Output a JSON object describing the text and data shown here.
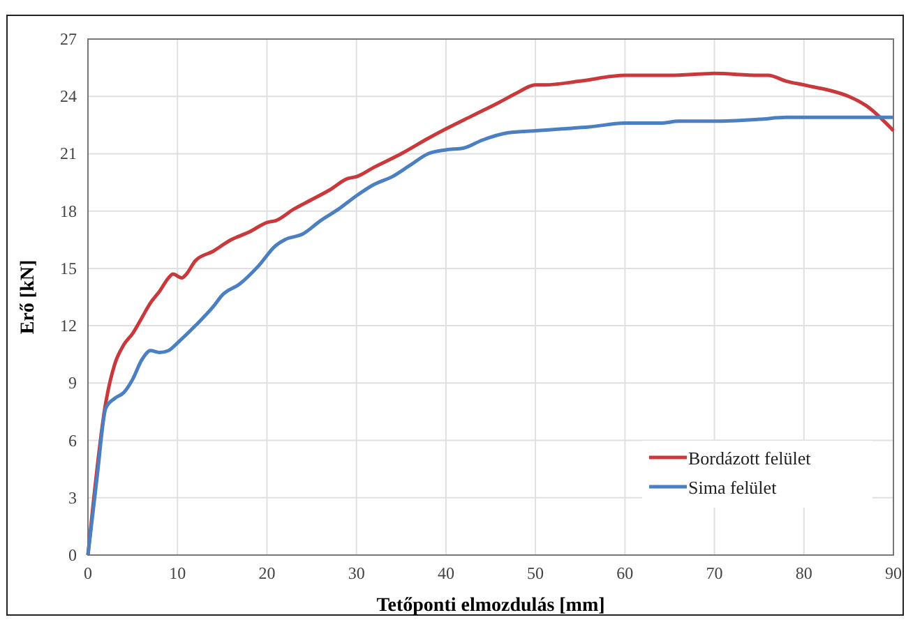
{
  "chart_data": {
    "type": "line",
    "xlabel": "Tetőponti elmozdulás [mm]",
    "ylabel": "Erő [kN]",
    "xlim": [
      0,
      90
    ],
    "xticks": [
      0,
      10,
      20,
      30,
      40,
      50,
      60,
      70,
      80,
      90
    ],
    "ylim": [
      0,
      27
    ],
    "yticks": [
      0,
      3,
      6,
      9,
      12,
      15,
      18,
      21,
      24,
      27
    ],
    "grid": true,
    "legend": "bottom right",
    "series": [
      {
        "name": "Bordázott felület",
        "color": "#c9383a",
        "x": [
          0,
          2,
          3,
          4,
          5,
          6,
          7,
          8,
          9,
          9.5,
          10.5,
          11,
          12,
          14,
          16,
          18,
          20,
          21,
          23,
          25,
          27,
          29,
          30,
          32,
          35,
          38,
          40,
          43,
          46,
          48,
          50,
          51,
          55,
          60,
          63,
          65,
          70,
          75,
          76,
          78,
          80,
          81,
          83,
          85,
          87,
          90
        ],
        "values": [
          0,
          8,
          10,
          11,
          11.6,
          12.4,
          13.2,
          13.8,
          14.5,
          14.7,
          14.5,
          14.7,
          15.4,
          15.9,
          16.5,
          16.9,
          17.4,
          17.5,
          18.1,
          18.6,
          19.1,
          19.7,
          19.8,
          20.3,
          21,
          21.8,
          22.3,
          23,
          23.7,
          24.2,
          24.6,
          24.6,
          24.8,
          25.1,
          25.1,
          25.1,
          25.2,
          25.1,
          25.1,
          24.8,
          24.6,
          24.5,
          24.3,
          24,
          23.5,
          22.2
        ]
      },
      {
        "name": "Sima felület",
        "color": "#4a7fc1",
        "x": [
          0,
          1,
          2,
          3,
          4,
          5,
          6,
          7,
          8,
          9,
          10,
          12,
          14,
          15,
          17,
          19,
          21,
          22,
          24,
          26,
          28,
          30,
          32,
          34,
          36,
          38,
          40,
          42,
          44,
          47,
          50,
          53,
          56,
          60,
          64,
          66,
          70,
          75,
          78,
          82,
          90
        ],
        "values": [
          0,
          4,
          7.7,
          8.2,
          8.5,
          9.2,
          10.2,
          10.7,
          10.6,
          10.7,
          11.1,
          12,
          13,
          13.6,
          14.2,
          15.1,
          16.2,
          16.5,
          16.8,
          17.5,
          18.1,
          18.8,
          19.4,
          19.8,
          20.4,
          21,
          21.2,
          21.3,
          21.7,
          22.1,
          22.2,
          22.3,
          22.4,
          22.6,
          22.6,
          22.7,
          22.7,
          22.8,
          22.9,
          22.9,
          22.9
        ]
      }
    ]
  }
}
